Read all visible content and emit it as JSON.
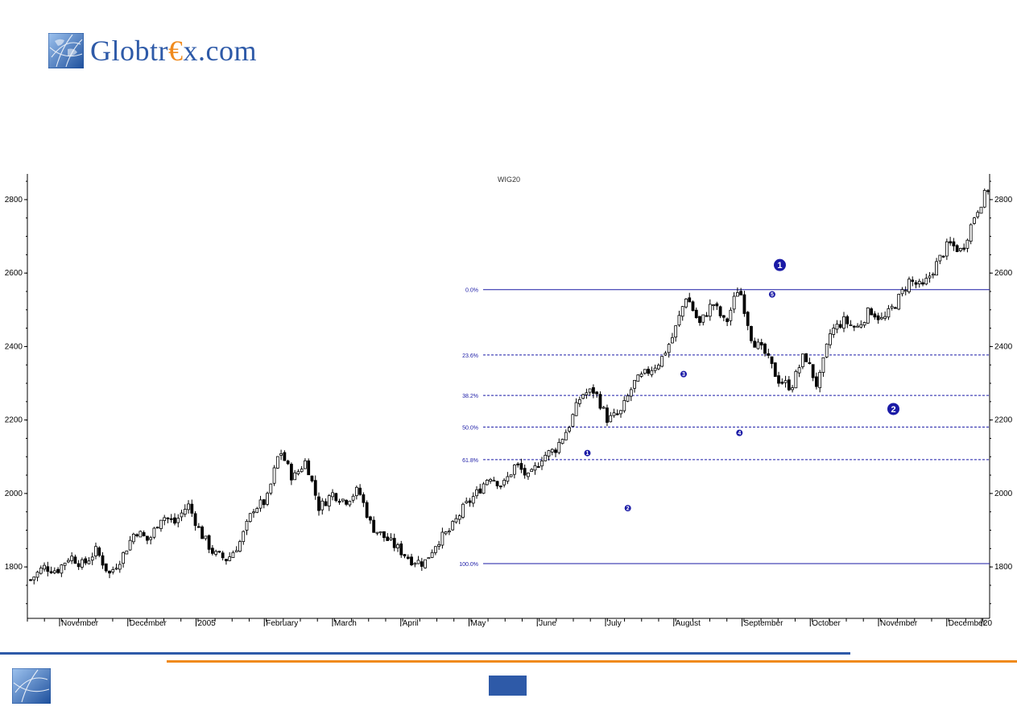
{
  "brand": {
    "name_part1": "Globtr",
    "name_euro": "€",
    "name_part2": "x.com",
    "color_blue": "#2e5aa8",
    "color_orange": "#f08a1c",
    "logo_icon": "globe-icon"
  },
  "chart_data": {
    "type": "candlestick",
    "title": "WIG20",
    "ylim": [
      1660,
      2870
    ],
    "yticks": [
      1800,
      2000,
      2200,
      2400,
      2600,
      2800
    ],
    "ytick_labels": [
      "1800",
      "2000",
      "2200",
      "2400",
      "2600",
      "2800"
    ],
    "x_month_labels": [
      "November",
      "December",
      "2005",
      "February",
      "March",
      "April",
      "May",
      "June",
      "July",
      "August",
      "September",
      "October",
      "November",
      "December",
      "20"
    ],
    "price_series": [
      1765,
      1800,
      1790,
      1830,
      1805,
      1845,
      1780,
      1830,
      1900,
      1870,
      1940,
      1920,
      1970,
      1890,
      1835,
      1820,
      1870,
      1960,
      1980,
      2120,
      2040,
      2090,
      1960,
      2000,
      1980,
      2010,
      1910,
      1880,
      1850,
      1820,
      1810,
      1870,
      1900,
      1960,
      2000,
      2050,
      2020,
      2080,
      2040,
      2100,
      2120,
      2180,
      2270,
      2280,
      2200,
      2220,
      2300,
      2330,
      2360,
      2430,
      2540,
      2460,
      2520,
      2460,
      2565,
      2420,
      2380,
      2310,
      2290,
      2380,
      2290,
      2440,
      2470,
      2450,
      2500,
      2470,
      2520,
      2580,
      2560,
      2620,
      2680,
      2660,
      2760,
      2830
    ],
    "fibonacci": {
      "color": "#1a1aa6",
      "levels": [
        {
          "label": "0.0%",
          "value": 2555
        },
        {
          "label": "23.6%",
          "value": 2377
        },
        {
          "label": "38.2%",
          "value": 2267
        },
        {
          "label": "50.0%",
          "value": 2181
        },
        {
          "label": "61.8%",
          "value": 2092
        },
        {
          "label": "100.0%",
          "value": 1809
        }
      ]
    },
    "wave_labels": [
      {
        "label": "1",
        "value": 2110,
        "position": 0.582
      },
      {
        "label": "2",
        "value": 1960,
        "position": 0.624
      },
      {
        "label": "3",
        "value": 2325,
        "position": 0.682
      },
      {
        "label": "4",
        "value": 2165,
        "position": 0.74
      },
      {
        "label": "5",
        "value": 2542,
        "position": 0.774
      },
      {
        "label": "1",
        "value": 2622,
        "position": 0.782,
        "major": true
      },
      {
        "label": "2",
        "value": 2230,
        "position": 0.9,
        "major": true
      }
    ]
  }
}
